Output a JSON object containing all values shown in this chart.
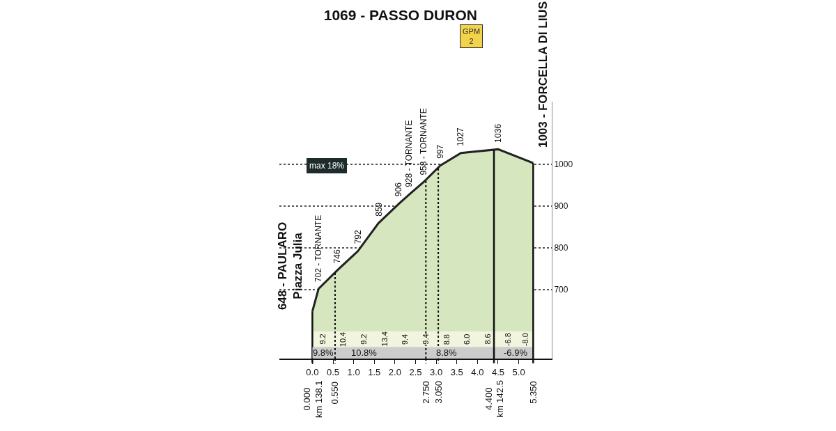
{
  "chart_data": {
    "type": "area",
    "title": "1069 - PASSO DURON",
    "x": [
      0,
      0.15,
      0.6,
      1.1,
      1.6,
      2.1,
      2.35,
      2.7,
      3.1,
      3.6,
      4.5,
      5.35
    ],
    "series": [
      {
        "color": "#d6e6bf",
        "values": [
          648,
          702,
          746,
          792,
          859,
          906,
          928,
          958,
          997,
          1027,
          1036,
          1003
        ]
      }
    ],
    "xlim": [
      -0.8,
      5.8
    ],
    "ylim": [
      535,
      1150
    ],
    "xticks": [
      {
        "value": 0,
        "label": "0.0"
      },
      {
        "value": 0.5,
        "label": "0.5"
      },
      {
        "value": 1,
        "label": "1.0"
      },
      {
        "value": 1.5,
        "label": "1.5"
      },
      {
        "value": 2,
        "label": "2.0"
      },
      {
        "value": 2.5,
        "label": "2.5"
      },
      {
        "value": 3,
        "label": "3.0"
      },
      {
        "value": 3.5,
        "label": "3.5"
      },
      {
        "value": 4,
        "label": "4.0"
      },
      {
        "value": 4.5,
        "label": "4.5"
      },
      {
        "value": 5,
        "label": "5.0"
      }
    ],
    "yticks": [
      700,
      800,
      900,
      1000
    ],
    "grid": "y",
    "bands": [
      {
        "axis": "y",
        "from": 535,
        "to": 563,
        "color": "#cccccc"
      },
      {
        "axis": "y",
        "from": 563,
        "to": 600,
        "color": "#f1f5de"
      }
    ],
    "ref_lines": [
      {
        "axis": "x",
        "value": 0,
        "label": "0.000\nkm 138.1",
        "line_style": "solid"
      },
      {
        "axis": "x",
        "value": 0.55,
        "label": "0.550",
        "line_style": "dotted"
      },
      {
        "axis": "x",
        "value": 2.75,
        "label": "2.750",
        "line_style": "dotted"
      },
      {
        "axis": "x",
        "value": 3.05,
        "label": "3.050",
        "line_style": "dotted"
      },
      {
        "axis": "x",
        "value": 4.4,
        "label": "4.400\nkm 142.5",
        "line_style": "solid"
      },
      {
        "axis": "x",
        "value": 5.35,
        "label": "5.350",
        "line_style": "solid"
      }
    ],
    "annotations": [
      "GPM\n2",
      "max 18%",
      {
        "text": "648 - PAULARO\nPiazza Julia",
        "x": 0,
        "y": 648
      },
      {
        "text": "702 - TORNANTE",
        "x": 0.15,
        "y": 702
      },
      {
        "text": "746",
        "x": 0.6,
        "y": 746
      },
      {
        "text": "792",
        "x": 1.1,
        "y": 792
      },
      {
        "text": "859",
        "x": 1.6,
        "y": 859
      },
      {
        "text": "906",
        "x": 2.1,
        "y": 906
      },
      {
        "text": "928 - TORNANTE",
        "x": 2.35,
        "y": 928
      },
      {
        "text": "958 - TORNANTE",
        "x": 2.7,
        "y": 958
      },
      {
        "text": "997",
        "x": 3.1,
        "y": 997
      },
      {
        "text": "1027",
        "x": 3.6,
        "y": 1027
      },
      {
        "text": "1036",
        "x": 4.5,
        "y": 1036
      },
      {
        "text": "1003 - FORCELLA DI LIUS",
        "x": 5.35,
        "y": 1003
      },
      {
        "text": "9.2",
        "x": 0.25,
        "y": 581
      },
      {
        "text": "10.4",
        "x": 0.75,
        "y": 581
      },
      {
        "text": "9.2",
        "x": 1.25,
        "y": 581
      },
      {
        "text": "13.4",
        "x": 1.75,
        "y": 581
      },
      {
        "text": "9.4",
        "x": 2.25,
        "y": 581
      },
      {
        "text": "9.4",
        "x": 2.75,
        "y": 581
      },
      {
        "text": "8.8",
        "x": 3.25,
        "y": 581
      },
      {
        "text": "6.0",
        "x": 3.75,
        "y": 581
      },
      {
        "text": "8.6",
        "x": 4.25,
        "y": 581
      },
      {
        "text": "-6.8",
        "x": 4.75,
        "y": 581
      },
      {
        "text": "-8.0",
        "x": 5.17,
        "y": 581
      },
      {
        "text": "9.8%",
        "x": 0.27,
        "y": 549
      },
      {
        "text": "10.8%",
        "x": 1.25,
        "y": 549
      },
      {
        "text": "8.8%",
        "x": 3.25,
        "y": 549
      },
      {
        "text": "-6.9%",
        "x": 4.92,
        "y": 549
      }
    ]
  }
}
